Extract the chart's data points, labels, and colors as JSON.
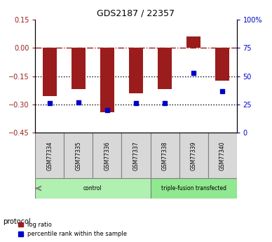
{
  "title": "GDS2187 / 22357",
  "samples": [
    "GSM77334",
    "GSM77335",
    "GSM77336",
    "GSM77337",
    "GSM77338",
    "GSM77339",
    "GSM77340"
  ],
  "log_ratio": [
    -0.255,
    -0.22,
    -0.34,
    -0.24,
    -0.22,
    0.06,
    -0.175
  ],
  "percentile_rank": [
    26,
    27,
    20,
    26,
    26,
    53,
    37
  ],
  "groups": [
    {
      "label": "control",
      "start": 0,
      "end": 4,
      "color": "#b0f0b0"
    },
    {
      "label": "triple-fusion transfected",
      "start": 4,
      "end": 7,
      "color": "#90e890"
    }
  ],
  "left_ylim": [
    0.15,
    -0.45
  ],
  "right_ylim": [
    100,
    0
  ],
  "left_yticks": [
    0.15,
    0.0,
    -0.15,
    -0.3,
    -0.45
  ],
  "right_yticks": [
    100,
    75,
    50,
    25,
    0
  ],
  "bar_color": "#9b1c1c",
  "dot_color": "#0000cc",
  "bar_width": 0.5,
  "hline_y": 0.0,
  "dotted_lines": [
    -0.15,
    -0.3
  ],
  "legend_items": [
    "log ratio",
    "percentile rank within the sample"
  ],
  "protocol_label": "protocol"
}
